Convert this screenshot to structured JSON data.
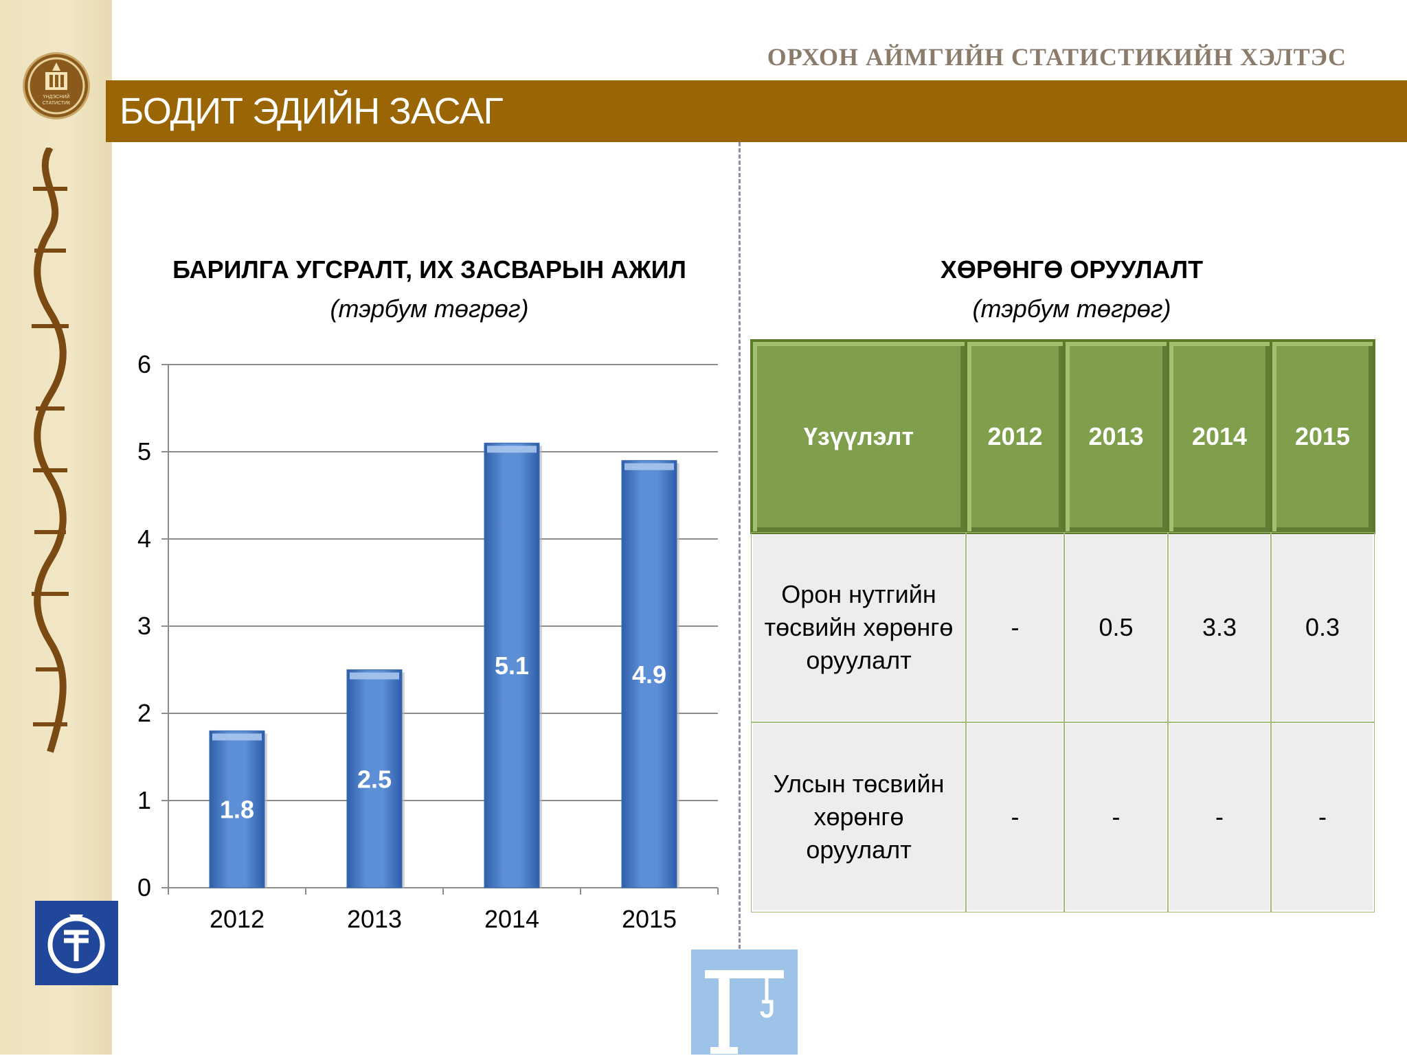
{
  "header": {
    "org_title": "ОРХОН АЙМГИЙН СТАТИСТИКИЙН ХЭЛТЭС",
    "banner_title": "БОДИТ ЭДИЙН ЗАСАГ"
  },
  "logos": {
    "emblem_text": "ҮНДЭСНИЙ СТАТИСТИК",
    "mongolian_script": "ᠤᠨᠳᠤᠰᠤᠨ ᠤ ᠰᠲ᠋ᠠᠲ᠋ᠢᠰᠲ᠋ᠢᠻ ᠤᠨ ᠭᠠᠵᠠᠷ"
  },
  "colors": {
    "banner": "#9a6504",
    "bar": "#4f7fc4",
    "table_header": "#7f9f4c"
  },
  "chart_data": {
    "type": "bar",
    "title": "БАРИЛГА УГСРАЛТ, ИХ ЗАСВАРЫН АЖИЛ",
    "subtitle": "(тэрбум төгрөг)",
    "categories": [
      "2012",
      "2013",
      "2014",
      "2015"
    ],
    "values": [
      1.8,
      2.5,
      5.1,
      4.9
    ],
    "value_labels": [
      "1.8",
      "2.5",
      "5.1",
      "4.9"
    ],
    "ylim": [
      0,
      6
    ],
    "yticks": [
      "0",
      "1",
      "2",
      "3",
      "4",
      "5",
      "6"
    ],
    "grid": true
  },
  "table": {
    "title": "ХӨРӨНГӨ ОРУУЛАЛТ",
    "subtitle": "(тэрбум төгрөг)",
    "headers": [
      "Үзүүлэлт",
      "2012",
      "2013",
      "2014",
      "2015"
    ],
    "rows": [
      [
        "Орон нутгийн төсвийн хөрөнгө оруулалт",
        "-",
        "0.5",
        "3.3",
        "0.3"
      ],
      [
        "Улсын төсвийн хөрөнгө оруулалт",
        "-",
        "-",
        "-",
        "-"
      ]
    ]
  }
}
